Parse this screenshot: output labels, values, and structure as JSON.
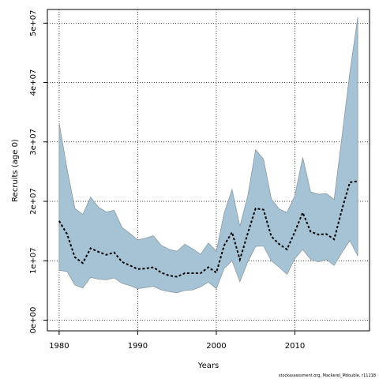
{
  "chart_data": {
    "type": "area",
    "xlabel": "Years",
    "ylabel": "Recruits (age 0)",
    "xlim": [
      1978.5,
      2019.5
    ],
    "ylim": [
      -1800000,
      52300000
    ],
    "x_ticks": [
      1980,
      1990,
      2000,
      2010
    ],
    "x_tick_labels": [
      "1980",
      "1990",
      "2000",
      "2010"
    ],
    "y_ticks": [
      0,
      10000000,
      20000000,
      30000000,
      40000000,
      50000000
    ],
    "y_tick_labels": [
      "0e+00",
      "1e+07",
      "2e+07",
      "3e+07",
      "4e+07",
      "5e+07"
    ],
    "grid": true,
    "grid_style": "dotted",
    "credit": "stockassessment.org, Mackerel_Mdouble, r11218",
    "colors": {
      "band_fill": "#a5c3d5",
      "band_edge": "#8a9aa6",
      "line": "#000000"
    },
    "x": [
      1980,
      1981,
      1982,
      1983,
      1984,
      1985,
      1986,
      1987,
      1988,
      1989,
      1990,
      1991,
      1992,
      1993,
      1994,
      1995,
      1996,
      1997,
      1998,
      1999,
      2000,
      2001,
      2002,
      2003,
      2004,
      2005,
      2006,
      2007,
      2008,
      2009,
      2010,
      2011,
      2012,
      2013,
      2014,
      2015,
      2016,
      2017,
      2018
    ],
    "series": [
      {
        "name": "Recruits",
        "values": [
          16700000,
          14500000,
          10600000,
          9600000,
          12100000,
          11500000,
          11000000,
          11400000,
          9800000,
          9200000,
          8600000,
          8700000,
          8900000,
          8000000,
          7500000,
          7300000,
          7900000,
          7900000,
          7900000,
          8900000,
          8000000,
          12600000,
          14800000,
          10200000,
          14600000,
          18800000,
          18600000,
          14100000,
          12800000,
          11900000,
          14900000,
          18100000,
          14900000,
          14400000,
          14500000,
          13600000,
          18700000,
          23200000,
          23400000
        ]
      },
      {
        "name": "Upper",
        "values": [
          33200000,
          25500000,
          18800000,
          17800000,
          20700000,
          19000000,
          18200000,
          18500000,
          15600000,
          14600000,
          13500000,
          13800000,
          14200000,
          12600000,
          11900000,
          11600000,
          12800000,
          12000000,
          11100000,
          13000000,
          11600000,
          18000000,
          22000000,
          15800000,
          20900000,
          28700000,
          27100000,
          20400000,
          18700000,
          18100000,
          21000000,
          27400000,
          21600000,
          21200000,
          21300000,
          20300000,
          31000000,
          41700000,
          51000000
        ]
      },
      {
        "name": "Lower",
        "values": [
          8400000,
          8200000,
          5900000,
          5400000,
          7200000,
          6900000,
          6800000,
          7100000,
          6200000,
          5800000,
          5300000,
          5500000,
          5700000,
          5100000,
          4800000,
          4600000,
          5000000,
          5100000,
          5600000,
          6400000,
          5300000,
          8700000,
          10000000,
          6500000,
          9800000,
          12400000,
          12500000,
          10000000,
          8900000,
          7700000,
          10400000,
          11900000,
          10200000,
          9800000,
          10200000,
          9200000,
          11400000,
          13400000,
          10800000
        ]
      }
    ]
  }
}
